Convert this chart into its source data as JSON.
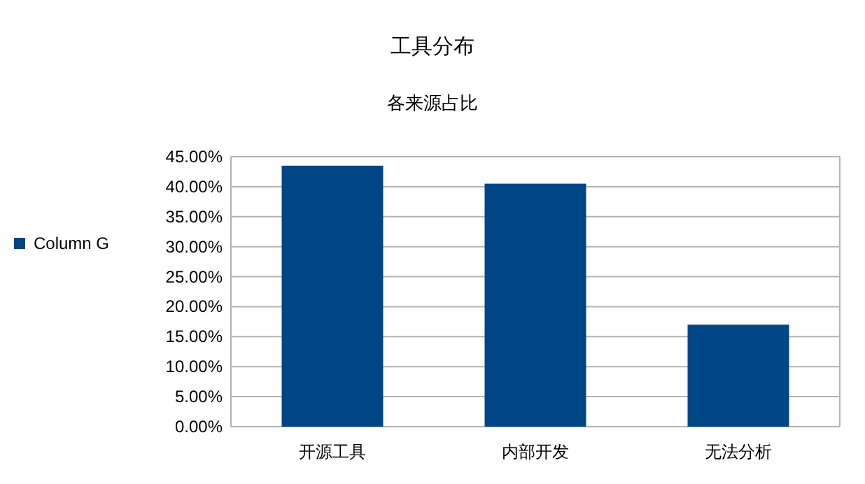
{
  "chart_data": {
    "type": "bar",
    "title": "工具分布",
    "subtitle": "各来源占比",
    "categories": [
      "开源工具",
      "内部开发",
      "无法分析"
    ],
    "series": [
      {
        "name": "Column G",
        "color": "#004586",
        "values": [
          43.5,
          40.5,
          17
        ]
      }
    ],
    "ylim": [
      0,
      45
    ],
    "yticks": [
      {
        "value": 0,
        "label": "0.00%"
      },
      {
        "value": 5,
        "label": "5.00%"
      },
      {
        "value": 10,
        "label": "10.00%"
      },
      {
        "value": 15,
        "label": "15.00%"
      },
      {
        "value": 20,
        "label": "20.00%"
      },
      {
        "value": 25,
        "label": "25.00%"
      },
      {
        "value": 30,
        "label": "30.00%"
      },
      {
        "value": 35,
        "label": "35.00%"
      },
      {
        "value": 40,
        "label": "40.00%"
      },
      {
        "value": 45,
        "label": "45.00%"
      }
    ],
    "grid": "y",
    "legend": "left"
  }
}
